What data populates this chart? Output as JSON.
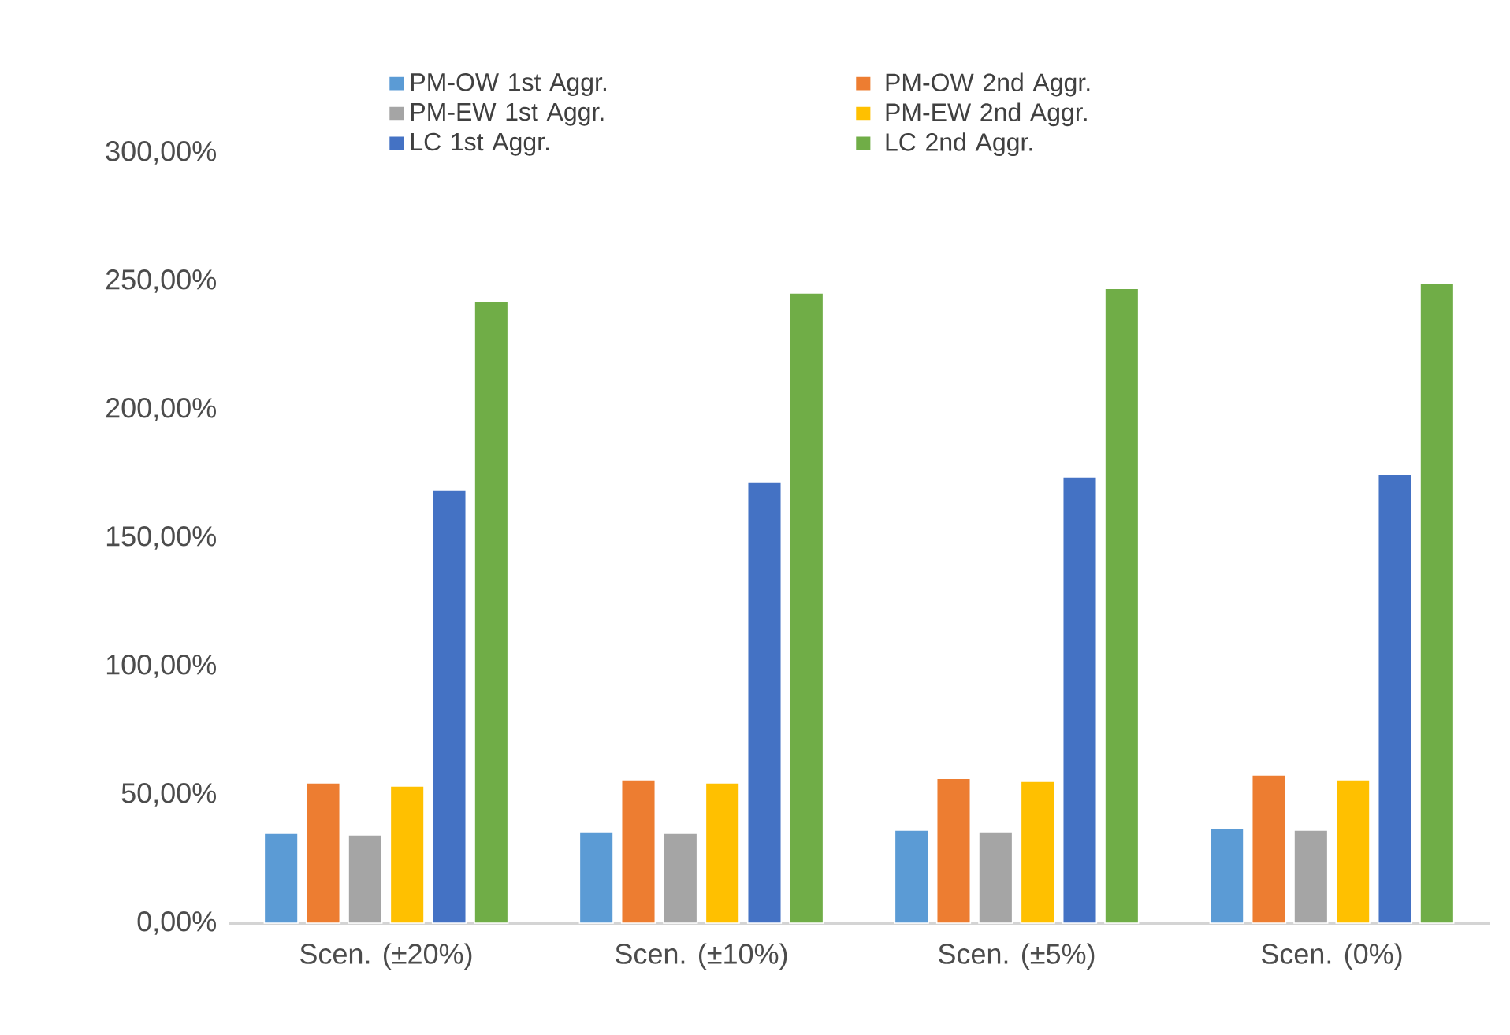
{
  "chart_data": {
    "type": "bar",
    "categories": [
      "Scen. (±20%)",
      "Scen. (±10%)",
      "Scen. (±5%)",
      "Scen. (0%)"
    ],
    "series": [
      {
        "name": "PM-OW 1st Aggr.",
        "color": "#5b9bd5",
        "values": [
          35,
          35.6,
          36.2,
          36.8
        ]
      },
      {
        "name": "PM-OW 2nd Aggr.",
        "color": "#ed7d31",
        "values": [
          54.6,
          55.8,
          56.4,
          57.7
        ]
      },
      {
        "name": "PM-EW 1st Aggr.",
        "color": "#a5a5a5",
        "values": [
          34.4,
          35,
          35.6,
          36.2
        ]
      },
      {
        "name": "PM-EW 2nd Aggr.",
        "color": "#ffc000",
        "values": [
          53.4,
          54.6,
          55.2,
          55.8
        ]
      },
      {
        "name": "LC 1st Aggr.",
        "color": "#4472c4",
        "values": [
          168.7,
          171.8,
          173.6,
          174.8
        ]
      },
      {
        "name": "LC 2nd Aggr.",
        "color": "#70ad47",
        "values": [
          242.3,
          245.4,
          247.2,
          249
        ]
      }
    ],
    "ylim": [
      0,
      300
    ],
    "yticks": [
      {
        "value": 0,
        "label": "0,00%"
      },
      {
        "value": 50,
        "label": "50,00%"
      },
      {
        "value": 100,
        "label": "100,00%"
      },
      {
        "value": 150,
        "label": "150,00%"
      },
      {
        "value": 200,
        "label": "200,00%"
      },
      {
        "value": 250,
        "label": "250,00%"
      },
      {
        "value": 300,
        "label": "300,00%"
      }
    ],
    "legend": "top"
  }
}
